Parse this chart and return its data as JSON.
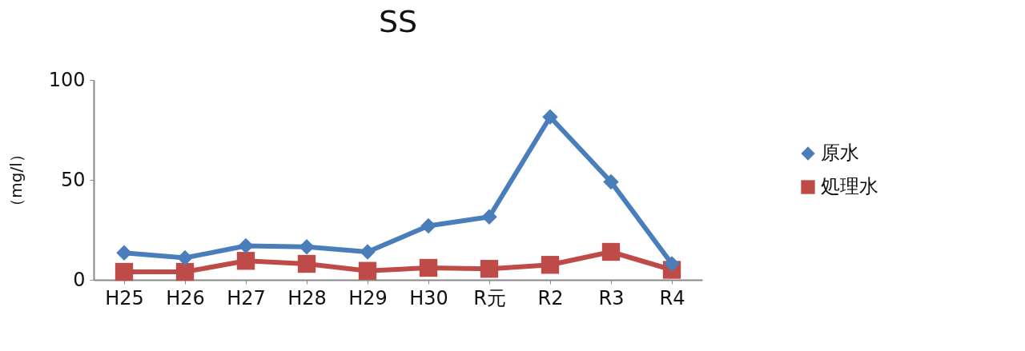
{
  "chart_data": {
    "type": "line",
    "title": "SS",
    "ylabel": "（mg/l）",
    "categories": [
      "H25",
      "H26",
      "H27",
      "H28",
      "H29",
      "H30",
      "R元",
      "R2",
      "R3",
      "R4"
    ],
    "series": [
      {
        "name": "原水",
        "color": "#4a7ebb",
        "marker": "diamond",
        "values": [
          13.5,
          11,
          17,
          16.5,
          14,
          27,
          31.5,
          81.5,
          49,
          8
        ]
      },
      {
        "name": "処理水",
        "color": "#be4b48",
        "marker": "square",
        "values": [
          4,
          4,
          9.5,
          8,
          4.5,
          6,
          5.5,
          7.5,
          14,
          5
        ]
      }
    ],
    "ylim": [
      0,
      100
    ],
    "yticks": [
      0,
      50,
      100
    ],
    "grid": false,
    "legend": "right"
  }
}
